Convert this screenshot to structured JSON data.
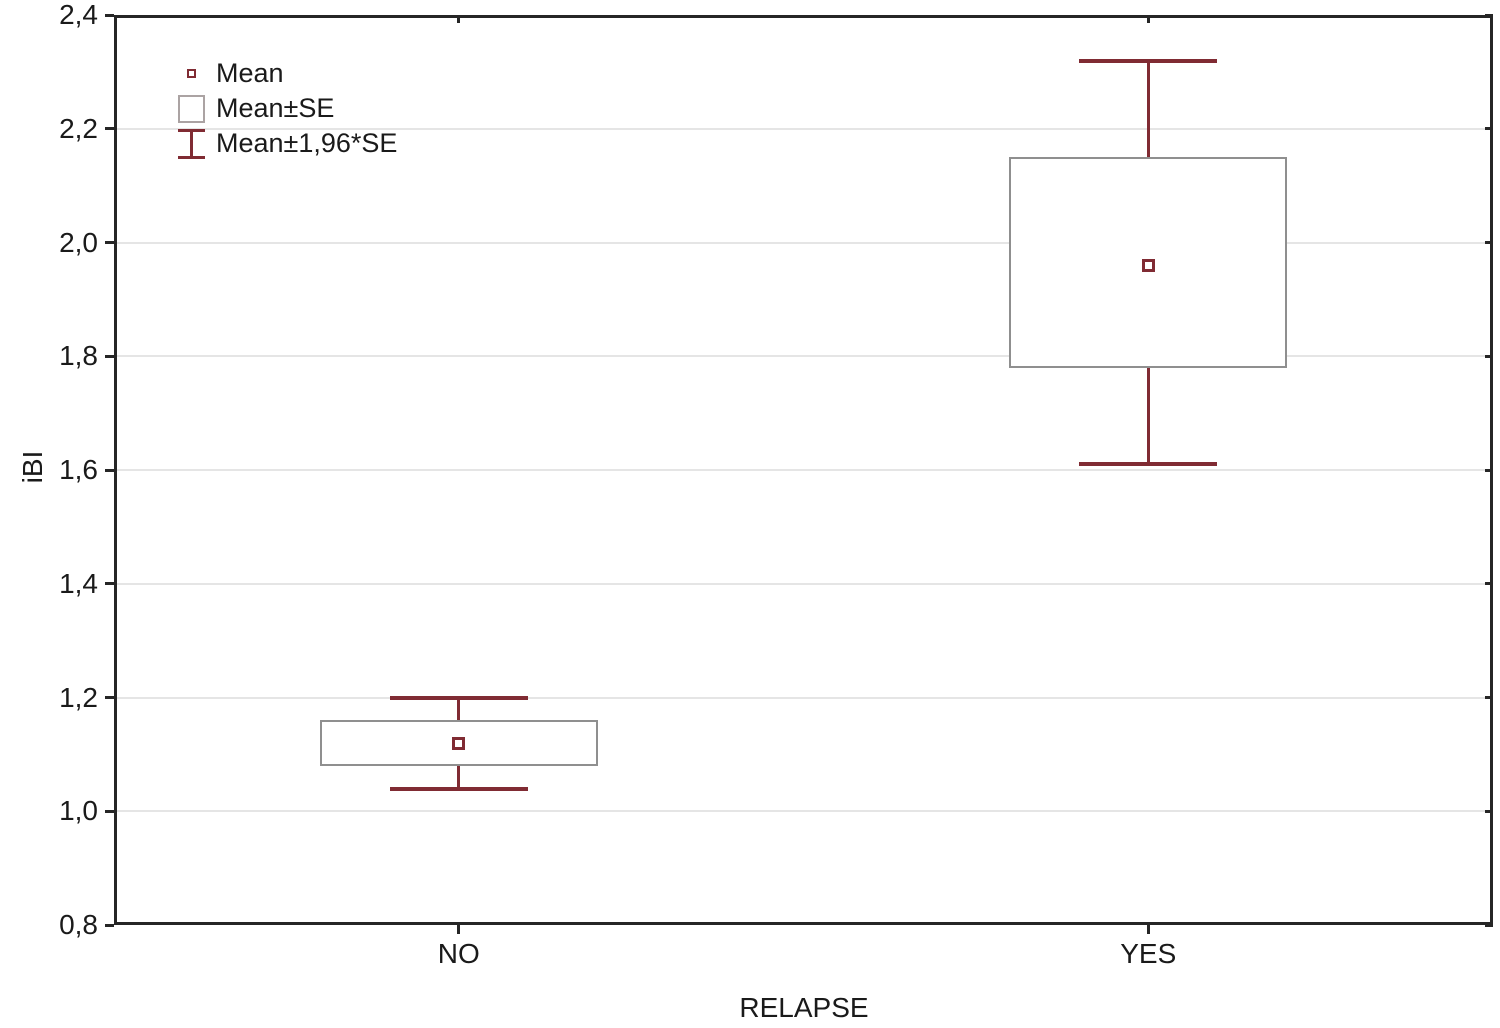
{
  "chart_data": {
    "type": "box",
    "variant": "mean-se-whisker-plot",
    "title": "",
    "xlabel": "RELAPSE",
    "ylabel": "iBI",
    "categories": [
      "NO",
      "YES"
    ],
    "ylim": [
      0.8,
      2.4
    ],
    "ytick_values": [
      2.4,
      2.2,
      2.0,
      1.8,
      1.6,
      1.4,
      1.2,
      1.0,
      0.8
    ],
    "ytick_labels": [
      "2,4",
      "2,2",
      "2,0",
      "1,8",
      "1,6",
      "1,4",
      "1,2",
      "1,0",
      "0,8"
    ],
    "decimal_separator": ",",
    "grid": "horizontal",
    "legend": {
      "position": "top-left-inside",
      "entries": [
        {
          "label": "Mean",
          "marker": "square-outline"
        },
        {
          "label": "Mean±SE",
          "marker": "box-outline"
        },
        {
          "label": "Mean±1,96*SE",
          "marker": "whisker"
        }
      ]
    },
    "groups": [
      {
        "category": "NO",
        "mean": 1.12,
        "mean_minus_se": 1.08,
        "mean_plus_se": 1.16,
        "mean_minus_196se": 1.04,
        "mean_plus_196se": 1.2
      },
      {
        "category": "YES",
        "mean": 1.96,
        "mean_minus_se": 1.78,
        "mean_plus_se": 2.15,
        "mean_minus_196se": 1.61,
        "mean_plus_196se": 2.32
      }
    ],
    "colors": {
      "whisker": "#802b33",
      "mean_marker": "#802b33",
      "box_border": "#8f8f8f",
      "box_fill": "#ffffff",
      "gridline": "#e5e5e5",
      "frame": "#262626",
      "text": "#1a1a1a",
      "background": "#ffffff"
    }
  }
}
